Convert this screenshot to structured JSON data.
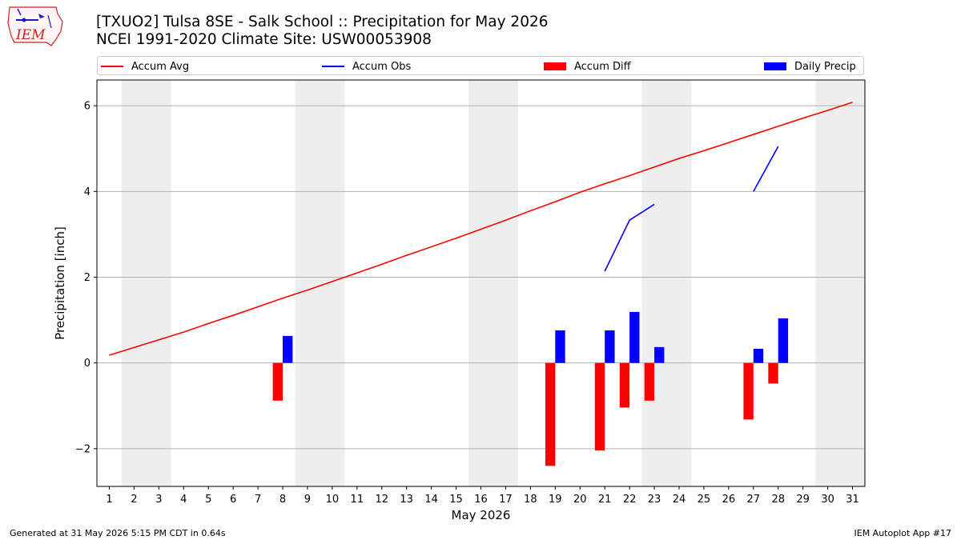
{
  "header": {
    "title_line1": "[TXUO2] Tulsa 8SE - Salk School :: Precipitation for May 2026",
    "title_line2": "NCEI 1991-2020 Climate Site: USW00053908",
    "logo_text": "IEM"
  },
  "footer": {
    "left": "Generated at 31 May 2026 5:15 PM CDT in 0.64s",
    "right": "IEM Autoplot App #17"
  },
  "legend": [
    {
      "label": "Accum Avg",
      "kind": "line",
      "color": "#ff0000"
    },
    {
      "label": "Accum Obs",
      "kind": "line",
      "color": "#0000ff"
    },
    {
      "label": "Accum Diff",
      "kind": "patch",
      "color": "#ff0000"
    },
    {
      "label": "Daily Precip",
      "kind": "patch",
      "color": "#0000ff"
    }
  ],
  "chart_data": {
    "type": "bar",
    "xlabel": "May 2026",
    "ylabel": "Precipitation [inch]",
    "xlim": [
      0.5,
      31.5
    ],
    "ylim": [
      -2.88,
      6.6
    ],
    "yticks": [
      -2,
      0,
      2,
      4,
      6
    ],
    "ytick_labels": [
      "−2",
      "0",
      "2",
      "4",
      "6"
    ],
    "days": [
      1,
      2,
      3,
      4,
      5,
      6,
      7,
      8,
      9,
      10,
      11,
      12,
      13,
      14,
      15,
      16,
      17,
      18,
      19,
      20,
      21,
      22,
      23,
      24,
      25,
      26,
      27,
      28,
      29,
      30,
      31
    ],
    "weekend_ranges": [
      [
        2,
        3
      ],
      [
        9,
        10
      ],
      [
        16,
        17
      ],
      [
        23,
        24
      ],
      [
        30,
        31
      ]
    ],
    "grid": "horizontal",
    "series": [
      {
        "name": "Accum Avg",
        "type": "line",
        "color": "#ff0000",
        "x": [
          1,
          2,
          3,
          4,
          5,
          6,
          7,
          8,
          9,
          10,
          11,
          12,
          13,
          14,
          15,
          16,
          17,
          18,
          19,
          20,
          21,
          22,
          23,
          24,
          25,
          26,
          27,
          28,
          29,
          30,
          31
        ],
        "y": [
          0.18,
          0.36,
          0.54,
          0.72,
          0.92,
          1.11,
          1.31,
          1.51,
          1.7,
          1.9,
          2.1,
          2.3,
          2.51,
          2.71,
          2.91,
          3.12,
          3.33,
          3.55,
          3.76,
          3.98,
          4.18,
          4.37,
          4.57,
          4.77,
          4.95,
          5.14,
          5.33,
          5.52,
          5.71,
          5.89,
          6.08
        ]
      },
      {
        "name": "Accum Obs",
        "type": "line",
        "color": "#0000ff",
        "segments": [
          {
            "x": [
              21,
              22,
              23
            ],
            "y": [
              2.14,
              3.33,
              3.7
            ]
          },
          {
            "x": [
              27,
              28
            ],
            "y": [
              4.0,
              5.05
            ]
          }
        ]
      },
      {
        "name": "Accum Diff",
        "type": "bar",
        "color": "#ff0000",
        "x": [
          8,
          19,
          21,
          22,
          23,
          27,
          28
        ],
        "values": [
          -0.88,
          -2.4,
          -2.04,
          -1.04,
          -0.88,
          -1.32,
          -0.48
        ]
      },
      {
        "name": "Daily Precip",
        "type": "bar",
        "color": "#0000ff",
        "x": [
          8,
          19,
          21,
          22,
          23,
          27,
          28
        ],
        "values": [
          0.63,
          0.76,
          0.76,
          1.19,
          0.37,
          0.33,
          1.04
        ]
      }
    ]
  }
}
